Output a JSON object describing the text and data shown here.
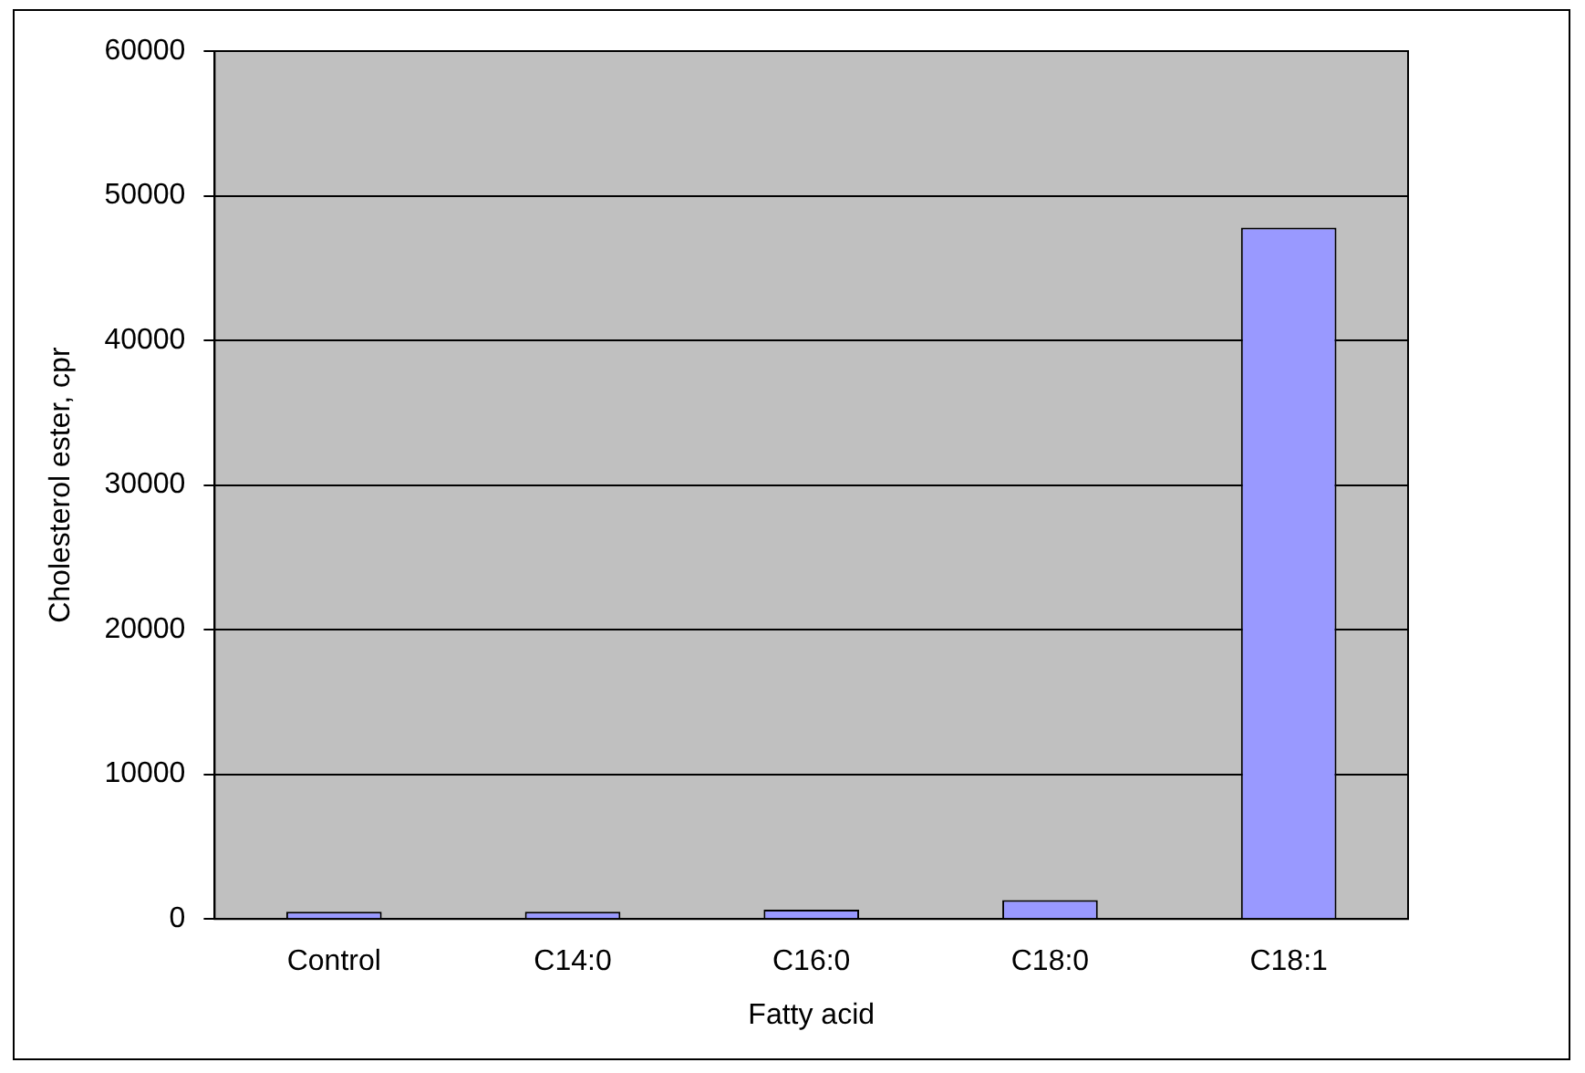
{
  "chart_data": {
    "type": "bar",
    "xlabel": "Fatty acid",
    "ylabel": "Cholesterol ester, cpr",
    "categories": [
      "Control",
      "C14:0",
      "C16:0",
      "C18:0",
      "C18:1"
    ],
    "values": [
      500,
      500,
      650,
      1300,
      47800
    ],
    "color": "#9999ff",
    "ylim": [
      0,
      60000
    ],
    "yticks": [
      0,
      10000,
      20000,
      30000,
      40000,
      50000,
      60000
    ],
    "grid": "y",
    "legend": false
  }
}
